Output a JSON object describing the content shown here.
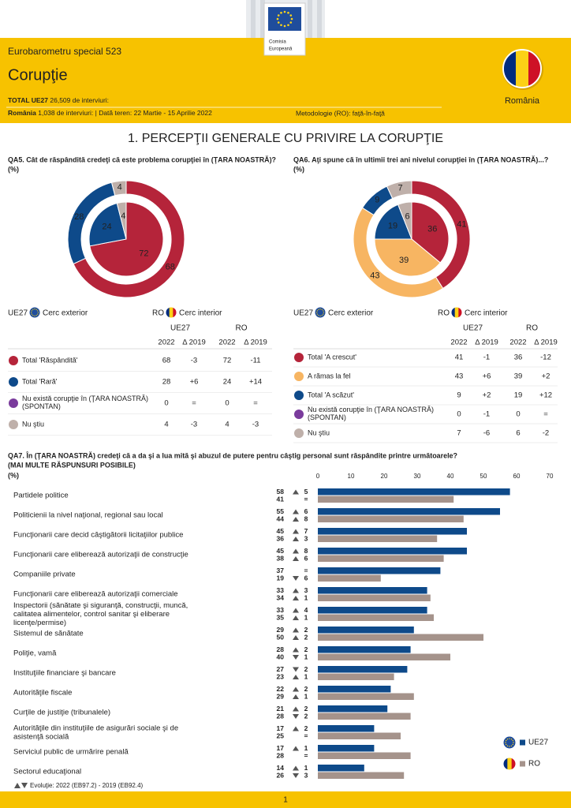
{
  "header": {
    "logo_lines": [
      "Comisia",
      "Europeană"
    ],
    "series": "Eurobarometru special 523",
    "title": "Corupţie",
    "total_label": "TOTAL UE27",
    "total_text": "26,509 de interviuri:",
    "ro_label": "România",
    "ro_text": "1,038 de interviuri:",
    "separator": "|",
    "fieldwork": "Dată teren: 22 Martie - 15 Aprilie 2022",
    "method": "Metodologie (RO): faţă-în-faţă",
    "country": "România"
  },
  "section_title": "1. PERCEPŢII GENERALE CU PRIVIRE LA CORUPŢIE",
  "chart_data": [
    {
      "type": "donut",
      "title": "QA5. Cât de răspândită credeţi că este problema corupţiei în (ŢARA NOASTRĂ)?",
      "subtitle": "(%)",
      "categories": [
        "Total 'Răspândită'",
        "Total 'Rară'",
        "Nu există corupţie în (ŢARA NOASTRĂ) (SPONTAN)",
        "Nu ştiu"
      ],
      "colors": [
        "#b5243a",
        "#0e4a8a",
        "#7a3b9c",
        "#bfb0aa"
      ],
      "table_headers": {
        "year": "2022",
        "change": "Δ 2019"
      },
      "series": [
        {
          "name": "UE27",
          "ring": "Cerc exterior",
          "values": [
            68,
            28,
            0,
            4
          ],
          "changes": [
            "-3",
            "+6",
            "=",
            "-3"
          ]
        },
        {
          "name": "RO",
          "ring": "Cerc interior",
          "values": [
            72,
            24,
            0,
            4
          ],
          "changes": [
            "-11",
            "+14",
            "=",
            "-3"
          ]
        }
      ]
    },
    {
      "type": "donut",
      "title": "QA6. Aţi spune că în ultimii trei ani nivelul corupţiei în (ŢARA NOASTRĂ)...?",
      "subtitle": "(%)",
      "categories": [
        "Total 'A crescut'",
        "A rămas la fel",
        "Total 'A scăzut'",
        "Nu există corupţie în (ŢARA NOASTRĂ) (SPONTAN)",
        "Nu ştiu"
      ],
      "colors": [
        "#b5243a",
        "#f7b562",
        "#0e4a8a",
        "#7a3b9c",
        "#bfb0aa"
      ],
      "table_headers": {
        "year": "2022",
        "change": "Δ 2019"
      },
      "series": [
        {
          "name": "UE27",
          "ring": "Cerc exterior",
          "values": [
            41,
            43,
            9,
            0,
            7
          ],
          "changes": [
            "-1",
            "+6",
            "+2",
            "-1",
            "-6"
          ]
        },
        {
          "name": "RO",
          "ring": "Cerc interior",
          "values": [
            36,
            39,
            19,
            0,
            6
          ],
          "changes": [
            "-12",
            "+2",
            "+12",
            "=",
            "-2"
          ]
        }
      ]
    },
    {
      "type": "bar",
      "orientation": "horizontal",
      "title": "QA7. În (ŢARA NOASTRĂ) credeţi că a da şi a lua mită şi abuzul de putere pentru câştig personal sunt răspândite printre următoarele?",
      "title2": "(MAI MULTE RĂSPUNSURI POSIBILE)",
      "subtitle": "(%)",
      "categories": [
        "Partidele politice",
        "Politicienii la nivel naţional, regional sau local",
        "Funcţionarii care decid câştigătorii licitaţiilor publice",
        "Funcţionarii care eliberează autorizaţii de construcţie",
        "Companiile private",
        "Funcţionarii care eliberează autorizaţii comerciale",
        "Inspectorii (sănătate şi siguranţă, construcţii, muncă, calitatea alimentelor, control sanitar şi eliberare licenţe/permise)",
        "Sistemul de sănătate",
        "Poliţie, vamă",
        "Instituţiile financiare şi bancare",
        "Autorităţile fiscale",
        "Curţile de justiţie (tribunalele)",
        "Autorităţile din instituţiile de asigurări sociale şi de asistenţă socială",
        "Serviciul public de urmărire penală",
        "Sectorul educaţional"
      ],
      "xlim": [
        0,
        70
      ],
      "xticks": [
        0,
        10,
        20,
        30,
        40,
        50,
        60,
        70
      ],
      "series": [
        {
          "name": "UE27",
          "color": "#0e4a8a",
          "values": [
            58,
            55,
            45,
            45,
            37,
            33,
            33,
            29,
            28,
            27,
            22,
            21,
            17,
            17,
            14
          ],
          "changes": [
            5,
            6,
            7,
            8,
            0,
            3,
            4,
            2,
            2,
            -2,
            2,
            2,
            2,
            1,
            1
          ],
          "change_labels": [
            "5",
            "6",
            "7",
            "8",
            "=",
            "3",
            "4",
            "2",
            "2",
            "2",
            "2",
            "2",
            "2",
            "1",
            "1"
          ]
        },
        {
          "name": "RO",
          "color": "#a5938b",
          "values": [
            41,
            44,
            36,
            38,
            19,
            34,
            35,
            50,
            40,
            23,
            29,
            28,
            25,
            28,
            26
          ],
          "changes": [
            0,
            8,
            3,
            6,
            -6,
            1,
            1,
            2,
            -1,
            1,
            1,
            -2,
            0,
            0,
            -3
          ],
          "change_labels": [
            "=",
            "8",
            "3",
            "6",
            "6",
            "1",
            "1",
            "2",
            "1",
            "1",
            "1",
            "2",
            "=",
            "=",
            "3"
          ]
        }
      ],
      "footnote": "Evoluţie: 2022 (EB97.2) - 2019 (EB92.4)"
    }
  ],
  "page_number": "1"
}
